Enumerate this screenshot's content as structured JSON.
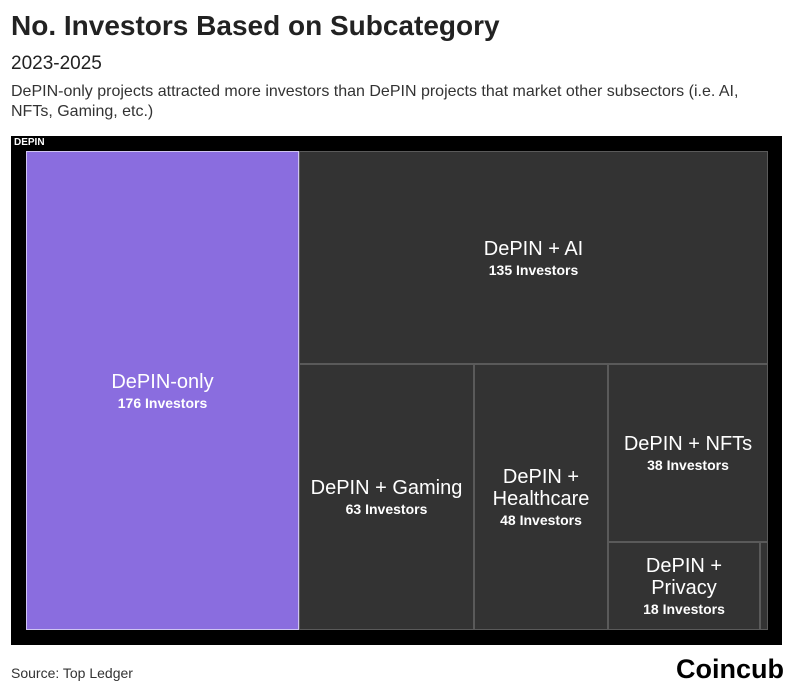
{
  "header": {
    "title": "No. Investors Based on Subcategory",
    "subtitle": "2023-2025",
    "description": "DePIN-only projects attracted more investors than DePIN projects that market other subsectors (i.e. AI, NFTs, Gaming, etc.)"
  },
  "footer": {
    "source": "Source: Top Ledger",
    "brand": "Coincub"
  },
  "chart_data": {
    "type": "treemap",
    "group": "DEPIN",
    "unit_label": "Investors",
    "items": [
      {
        "name": "DePIN-only",
        "value": 176,
        "value_label": "176 Investors",
        "color": "#8a6ddf"
      },
      {
        "name": "DePIN + AI",
        "value": 135,
        "value_label": "135 Investors",
        "color": "#333333"
      },
      {
        "name": "DePIN + Gaming",
        "value": 63,
        "value_label": "63 Investors",
        "color": "#333333"
      },
      {
        "name": "DePIN + Healthcare",
        "value": 48,
        "value_label": "48 Investors",
        "color": "#333333"
      },
      {
        "name": "DePIN + NFTs",
        "value": 38,
        "value_label": "38 Investors",
        "color": "#333333"
      },
      {
        "name": "DePIN + Privacy",
        "value": 18,
        "value_label": "18 Investors",
        "color": "#333333"
      }
    ]
  }
}
